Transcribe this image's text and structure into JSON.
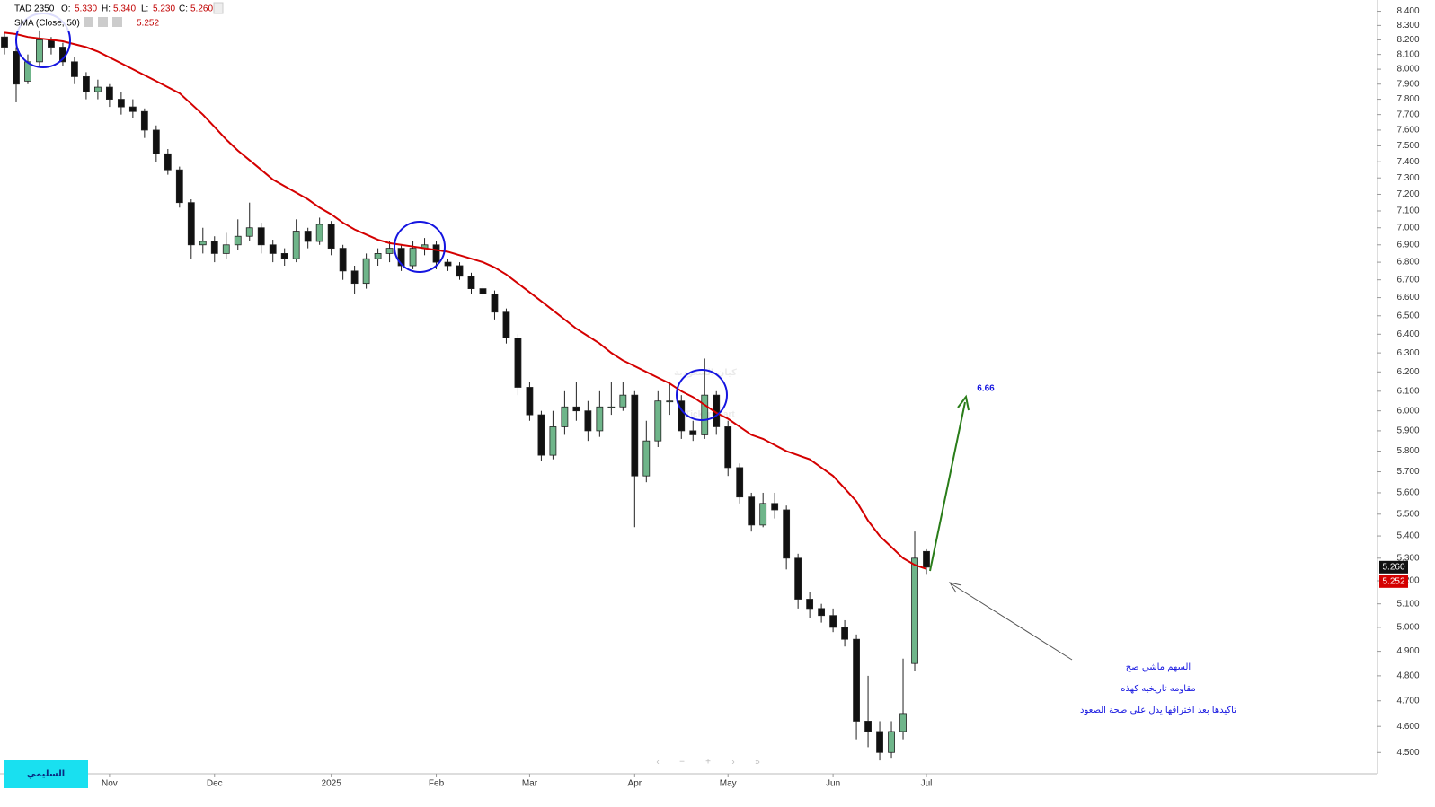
{
  "chart_data": {
    "type": "candlestick",
    "header": {
      "symbol": "TAD 2350",
      "fields": [
        {
          "key": "O:",
          "value": "5.330"
        },
        {
          "key": "H:",
          "value": "5.340"
        },
        {
          "key": "L:",
          "value": "5.230"
        },
        {
          "key": "C:",
          "value": "5.260"
        }
      ]
    },
    "categories": [
      null,
      null,
      null,
      null,
      null,
      null,
      null,
      null,
      null,
      "Nov",
      null,
      null,
      null,
      null,
      null,
      null,
      null,
      null,
      "Dec",
      null,
      null,
      null,
      null,
      null,
      null,
      null,
      null,
      null,
      "2025",
      null,
      null,
      null,
      null,
      null,
      null,
      null,
      null,
      "Feb",
      null,
      null,
      null,
      null,
      null,
      null,
      null,
      "Mar",
      null,
      null,
      null,
      null,
      null,
      null,
      null,
      null,
      "Apr",
      null,
      null,
      null,
      null,
      null,
      null,
      null,
      "May",
      null,
      null,
      null,
      null,
      null,
      null,
      null,
      null,
      "Jun",
      null,
      null,
      null,
      null,
      null,
      null,
      null,
      "Jul"
    ],
    "open": [
      8.22,
      8.12,
      7.92,
      8.05,
      8.2,
      8.15,
      8.05,
      7.95,
      7.85,
      7.88,
      7.8,
      7.75,
      7.72,
      7.6,
      7.45,
      7.35,
      7.15,
      6.9,
      6.92,
      6.85,
      6.9,
      6.95,
      7.0,
      6.9,
      6.85,
      6.82,
      6.98,
      6.92,
      7.02,
      6.88,
      6.75,
      6.68,
      6.82,
      6.85,
      6.88,
      6.78,
      6.88,
      6.9,
      6.8,
      6.78,
      6.72,
      6.65,
      6.62,
      6.52,
      6.38,
      6.12,
      5.98,
      5.78,
      5.92,
      6.02,
      6.0,
      5.9,
      6.02,
      6.02,
      6.08,
      5.68,
      5.85,
      6.05,
      6.05,
      5.9,
      5.88,
      6.08,
      5.92,
      5.72,
      5.58,
      5.45,
      5.55,
      5.52,
      5.3,
      5.12,
      5.08,
      5.05,
      5.0,
      4.95,
      4.62,
      4.58,
      4.5,
      4.58,
      4.85,
      5.33
    ],
    "high": [
      8.25,
      8.15,
      8.1,
      8.27,
      8.22,
      8.18,
      8.08,
      7.98,
      7.93,
      7.9,
      7.85,
      7.8,
      7.74,
      7.63,
      7.48,
      7.37,
      7.17,
      7.0,
      6.95,
      6.97,
      7.05,
      7.15,
      7.03,
      6.93,
      6.88,
      7.05,
      7.0,
      7.06,
      7.04,
      6.9,
      6.78,
      6.85,
      6.88,
      6.92,
      6.9,
      6.92,
      6.94,
      6.92,
      6.82,
      6.8,
      6.74,
      6.67,
      6.64,
      6.54,
      6.4,
      6.15,
      6.0,
      6.0,
      6.1,
      6.15,
      6.05,
      6.1,
      6.15,
      6.15,
      6.1,
      5.95,
      6.1,
      6.15,
      6.08,
      5.95,
      6.27,
      6.1,
      5.95,
      5.74,
      5.6,
      5.6,
      5.6,
      5.54,
      5.32,
      5.15,
      5.1,
      5.08,
      5.03,
      4.97,
      4.8,
      4.62,
      4.62,
      4.87,
      5.42,
      5.34
    ],
    "low": [
      8.1,
      7.78,
      7.9,
      8.02,
      8.1,
      8.02,
      7.9,
      7.8,
      7.8,
      7.75,
      7.7,
      7.68,
      7.55,
      7.4,
      7.32,
      7.12,
      6.82,
      6.85,
      6.8,
      6.82,
      6.87,
      6.92,
      6.85,
      6.8,
      6.78,
      6.8,
      6.88,
      6.9,
      6.84,
      6.7,
      6.62,
      6.65,
      6.78,
      6.8,
      6.75,
      6.76,
      6.84,
      6.76,
      6.75,
      6.7,
      6.62,
      6.6,
      6.48,
      6.35,
      6.08,
      5.95,
      5.75,
      5.76,
      5.88,
      5.95,
      5.85,
      5.87,
      5.98,
      6.0,
      5.44,
      5.65,
      5.82,
      5.98,
      5.86,
      5.85,
      5.86,
      5.88,
      5.68,
      5.55,
      5.42,
      5.44,
      5.48,
      5.25,
      5.08,
      5.04,
      5.02,
      4.98,
      4.92,
      4.55,
      4.52,
      4.47,
      4.48,
      4.55,
      4.82,
      5.23
    ],
    "close": [
      8.15,
      7.9,
      8.05,
      8.2,
      8.15,
      8.05,
      7.95,
      7.85,
      7.88,
      7.8,
      7.75,
      7.72,
      7.6,
      7.45,
      7.35,
      7.15,
      6.9,
      6.92,
      6.85,
      6.9,
      6.95,
      7.0,
      6.9,
      6.85,
      6.82,
      6.98,
      6.92,
      7.02,
      6.88,
      6.75,
      6.68,
      6.82,
      6.85,
      6.88,
      6.78,
      6.88,
      6.9,
      6.8,
      6.78,
      6.72,
      6.65,
      6.62,
      6.52,
      6.38,
      6.12,
      5.98,
      5.78,
      5.92,
      6.02,
      6.0,
      5.9,
      6.02,
      6.02,
      6.08,
      5.68,
      5.85,
      6.05,
      6.05,
      5.9,
      5.88,
      6.08,
      5.92,
      5.72,
      5.58,
      5.45,
      5.55,
      5.52,
      5.3,
      5.12,
      5.08,
      5.05,
      5.0,
      4.95,
      4.62,
      4.58,
      4.5,
      4.58,
      4.65,
      5.3,
      5.26
    ],
    "up_color": "#6fb58a",
    "down_color": "#111111",
    "last_close_label": "5.260",
    "series": [
      {
        "name": "SMA (Close, 50)",
        "color": "#d40000",
        "last_label": "5.252",
        "values": [
          8.25,
          8.24,
          8.22,
          8.21,
          8.2,
          8.19,
          8.17,
          8.15,
          8.12,
          8.08,
          8.04,
          8.0,
          7.96,
          7.92,
          7.88,
          7.84,
          7.77,
          7.7,
          7.62,
          7.54,
          7.47,
          7.41,
          7.35,
          7.29,
          7.25,
          7.21,
          7.17,
          7.12,
          7.08,
          7.03,
          6.99,
          6.96,
          6.93,
          6.91,
          6.9,
          6.89,
          6.88,
          6.87,
          6.86,
          6.84,
          6.82,
          6.8,
          6.77,
          6.73,
          6.68,
          6.63,
          6.58,
          6.53,
          6.48,
          6.43,
          6.39,
          6.35,
          6.3,
          6.26,
          6.23,
          6.2,
          6.17,
          6.14,
          6.1,
          6.07,
          6.03,
          5.99,
          5.96,
          5.92,
          5.88,
          5.86,
          5.83,
          5.8,
          5.78,
          5.76,
          5.72,
          5.68,
          5.62,
          5.56,
          5.47,
          5.4,
          5.35,
          5.3,
          5.27,
          5.252
        ]
      }
    ],
    "ylim": [
      4.42,
      8.48
    ],
    "log_scale": true,
    "grid": false,
    "yticks": [
      {
        "value": 8.4,
        "label": "8.400"
      },
      {
        "value": 8.3,
        "label": "8.300"
      },
      {
        "value": 8.2,
        "label": "8.200"
      },
      {
        "value": 8.1,
        "label": "8.100"
      },
      {
        "value": 8.0,
        "label": "8.000"
      },
      {
        "value": 7.9,
        "label": "7.900"
      },
      {
        "value": 7.8,
        "label": "7.800"
      },
      {
        "value": 7.7,
        "label": "7.700"
      },
      {
        "value": 7.6,
        "label": "7.600"
      },
      {
        "value": 7.5,
        "label": "7.500"
      },
      {
        "value": 7.4,
        "label": "7.400"
      },
      {
        "value": 7.3,
        "label": "7.300"
      },
      {
        "value": 7.2,
        "label": "7.200"
      },
      {
        "value": 7.1,
        "label": "7.100"
      },
      {
        "value": 7.0,
        "label": "7.000"
      },
      {
        "value": 6.9,
        "label": "6.900"
      },
      {
        "value": 6.8,
        "label": "6.800"
      },
      {
        "value": 6.7,
        "label": "6.700"
      },
      {
        "value": 6.6,
        "label": "6.600"
      },
      {
        "value": 6.5,
        "label": "6.500"
      },
      {
        "value": 6.4,
        "label": "6.400"
      },
      {
        "value": 6.3,
        "label": "6.300"
      },
      {
        "value": 6.2,
        "label": "6.200"
      },
      {
        "value": 6.1,
        "label": "6.100"
      },
      {
        "value": 6.0,
        "label": "6.000"
      },
      {
        "value": 5.9,
        "label": "5.900"
      },
      {
        "value": 5.8,
        "label": "5.800"
      },
      {
        "value": 5.7,
        "label": "5.700"
      },
      {
        "value": 5.6,
        "label": "5.600"
      },
      {
        "value": 5.5,
        "label": "5.500"
      },
      {
        "value": 5.4,
        "label": "5.400"
      },
      {
        "value": 5.3,
        "label": "5.300"
      },
      {
        "value": 5.2,
        "label": "5.200"
      },
      {
        "value": 5.1,
        "label": "5.100"
      },
      {
        "value": 5.0,
        "label": "5.000"
      },
      {
        "value": 4.9,
        "label": "4.900"
      },
      {
        "value": 4.8,
        "label": "4.800"
      },
      {
        "value": 4.7,
        "label": "4.700"
      },
      {
        "value": 4.6,
        "label": "4.600"
      },
      {
        "value": 4.5,
        "label": "4.500"
      }
    ],
    "target_label": "6.66",
    "annotations": [
      "السهم ماشي صح",
      "مقاومه تاريخيه كهذه",
      "تاكيدها بعد اختراقها يدل على صحة الصعود"
    ],
    "author": "السليمي",
    "watermark": [
      "كيان السعودية",
      "TickerChart"
    ]
  }
}
